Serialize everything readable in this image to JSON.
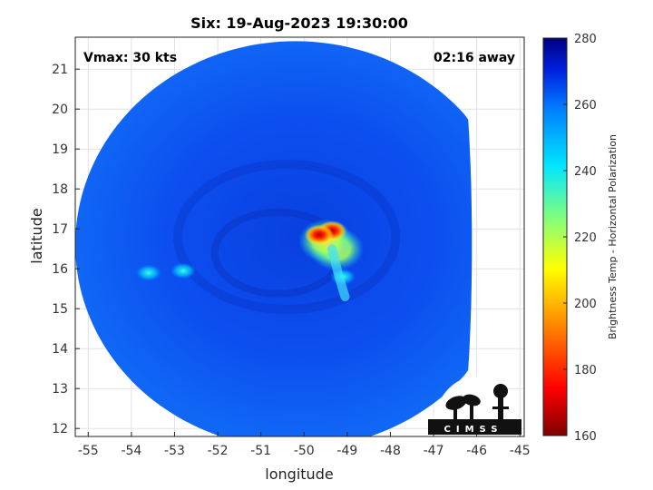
{
  "chart_data": {
    "type": "heatmap",
    "title": "Six: 19-Aug-2023 19:30:00",
    "annotations": {
      "top_left": "Vmax: 30 kts",
      "top_right": "02:16 away"
    },
    "xlabel": "longitude",
    "ylabel": "latitude",
    "xlim": [
      -55.3,
      -44.9
    ],
    "ylim": [
      11.8,
      21.8
    ],
    "xticks": [
      -55,
      -54,
      -53,
      -52,
      -51,
      -50,
      -49,
      -48,
      -47,
      -46,
      -45
    ],
    "yticks": [
      12,
      13,
      14,
      15,
      16,
      17,
      18,
      19,
      20,
      21
    ],
    "grid": true,
    "swath": {
      "center_lon": -50.2,
      "center_lat": 16.6,
      "radius_deg": 5.1,
      "east_cut_lon": -46.2
    },
    "background_value": 257,
    "features": [
      {
        "lon": -49.65,
        "lat": 16.85,
        "value": 175
      },
      {
        "lon": -49.35,
        "lat": 16.95,
        "value": 180
      },
      {
        "lon": -49.5,
        "lat": 16.7,
        "value": 200
      },
      {
        "lon": -49.25,
        "lat": 16.5,
        "value": 225
      },
      {
        "lon": -49.1,
        "lat": 15.8,
        "value": 238
      },
      {
        "lon": -53.6,
        "lat": 15.9,
        "value": 240
      },
      {
        "lon": -52.8,
        "lat": 15.95,
        "value": 243
      }
    ],
    "colorbar": {
      "label": "Brightness Temp - Horizontal Polarization",
      "min": 160,
      "max": 280,
      "ticks": [
        160,
        180,
        200,
        220,
        240,
        260,
        280
      ]
    }
  },
  "logo_text": "CIMSS"
}
